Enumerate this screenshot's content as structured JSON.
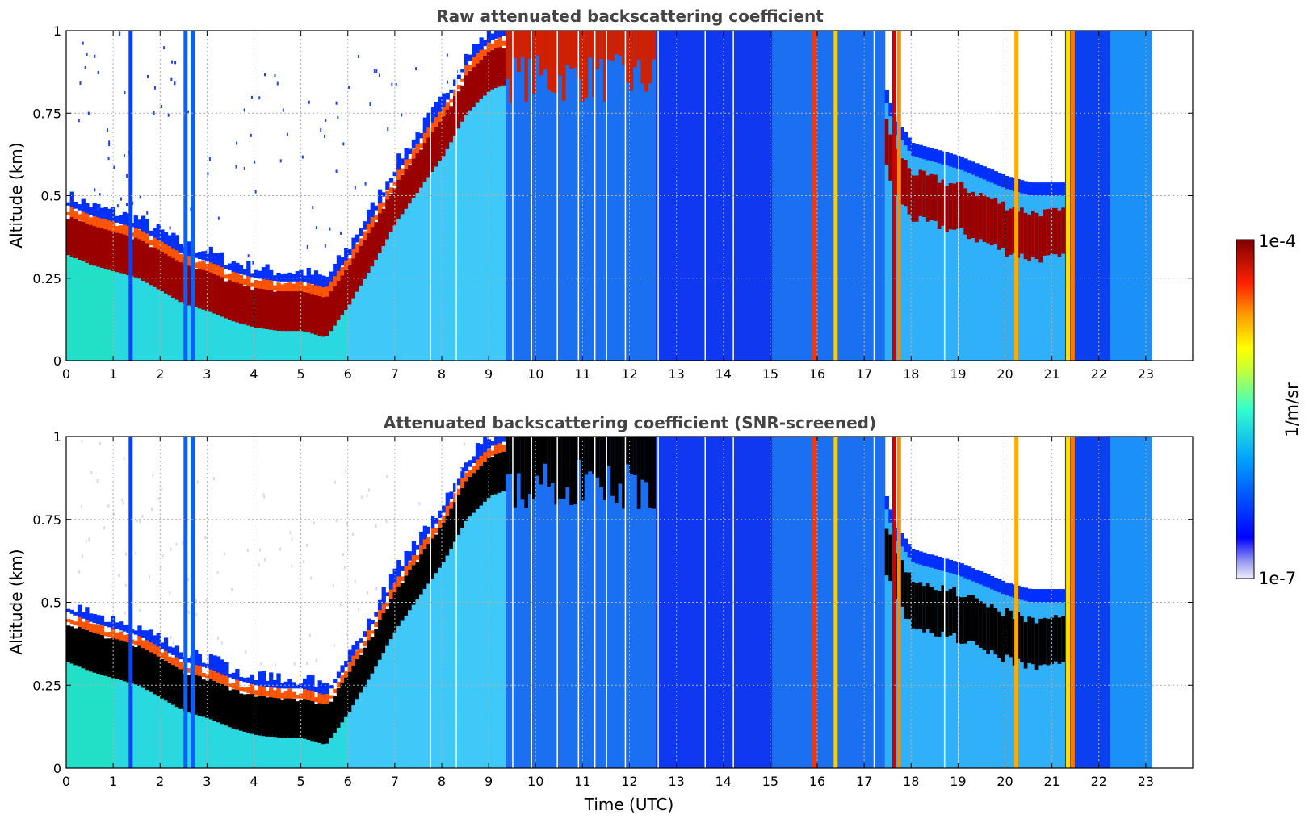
{
  "chart_data": [
    {
      "type": "heatmap",
      "title": "Raw attenuated backscattering coefficient",
      "xlabel": "",
      "ylabel": "Altitude (km)",
      "xlim": [
        0,
        24
      ],
      "ylim": [
        0,
        1
      ],
      "xticks": [
        "0",
        "1",
        "2",
        "3",
        "4",
        "5",
        "6",
        "7",
        "8",
        "9",
        "10",
        "11",
        "12",
        "13",
        "14",
        "15",
        "16",
        "17",
        "18",
        "19",
        "20",
        "21",
        "22",
        "23"
      ],
      "yticks": [
        "0",
        "0.25",
        "0.5",
        "0.75",
        "1"
      ],
      "grid": true,
      "layer_top_km": [
        {
          "t": 0.0,
          "top": 0.45
        },
        {
          "t": 0.5,
          "top": 0.42
        },
        {
          "t": 1.0,
          "top": 0.4
        },
        {
          "t": 1.5,
          "top": 0.38
        },
        {
          "t": 2.0,
          "top": 0.34
        },
        {
          "t": 2.5,
          "top": 0.3
        },
        {
          "t": 3.0,
          "top": 0.28
        },
        {
          "t": 3.5,
          "top": 0.25
        },
        {
          "t": 4.0,
          "top": 0.23
        },
        {
          "t": 4.5,
          "top": 0.22
        },
        {
          "t": 5.0,
          "top": 0.22
        },
        {
          "t": 5.5,
          "top": 0.2
        },
        {
          "t": 6.0,
          "top": 0.3
        },
        {
          "t": 6.5,
          "top": 0.42
        },
        {
          "t": 7.0,
          "top": 0.55
        },
        {
          "t": 7.5,
          "top": 0.65
        },
        {
          "t": 8.0,
          "top": 0.75
        },
        {
          "t": 8.5,
          "top": 0.88
        },
        {
          "t": 9.0,
          "top": 0.95
        },
        {
          "t": 10.0,
          "top": 1.0
        },
        {
          "t": 11.0,
          "top": 1.0
        },
        {
          "t": 12.0,
          "top": 1.0
        },
        {
          "t": 13.0,
          "top": 1.0
        },
        {
          "t": 14.0,
          "top": 1.0
        },
        {
          "t": 15.0,
          "top": 1.0
        },
        {
          "t": 16.0,
          "top": 1.0
        },
        {
          "t": 17.0,
          "top": 1.0
        },
        {
          "t": 17.6,
          "top": 0.7
        },
        {
          "t": 18.0,
          "top": 0.62
        },
        {
          "t": 18.5,
          "top": 0.6
        },
        {
          "t": 19.0,
          "top": 0.58
        },
        {
          "t": 19.5,
          "top": 0.55
        },
        {
          "t": 20.0,
          "top": 0.52
        },
        {
          "t": 20.5,
          "top": 0.5
        },
        {
          "t": 21.0,
          "top": 0.5
        }
      ]
    },
    {
      "type": "heatmap",
      "title": "Attenuated backscattering coefficient (SNR-screened)",
      "xlabel": "Time (UTC)",
      "ylabel": "Altitude (km)",
      "xlim": [
        0,
        24
      ],
      "ylim": [
        0,
        1
      ],
      "xticks": [
        "0",
        "1",
        "2",
        "3",
        "4",
        "5",
        "6",
        "7",
        "8",
        "9",
        "10",
        "11",
        "12",
        "13",
        "14",
        "15",
        "16",
        "17",
        "18",
        "19",
        "20",
        "21",
        "22",
        "23"
      ],
      "yticks": [
        "0",
        "0.25",
        "0.5",
        "0.75",
        "1"
      ],
      "grid": true,
      "screened": true
    }
  ],
  "colorbar": {
    "label": "1/m/sr",
    "max_label": "1e-4",
    "min_label": "1e-7",
    "range": [
      1e-07,
      0.0001
    ],
    "scale": "log",
    "colormap": "jet",
    "colors": [
      "#e6e6f7",
      "#0000ff",
      "#00aaff",
      "#33ffcc",
      "#ffff00",
      "#ff8800",
      "#ff0000",
      "#800000"
    ]
  }
}
